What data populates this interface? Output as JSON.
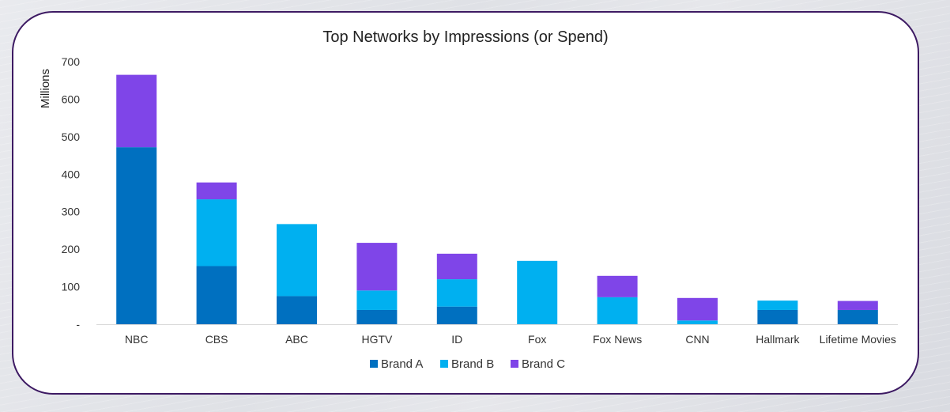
{
  "chart_data": {
    "type": "bar",
    "stacked": true,
    "title": "Top Networks by Impressions (or Spend)",
    "ylabel": "Millions",
    "xlabel": "",
    "ylim": [
      0,
      700
    ],
    "yticks": [
      0,
      100,
      200,
      300,
      400,
      500,
      600,
      700
    ],
    "ytick_labels": [
      "-",
      "100",
      "200",
      "300",
      "400",
      "500",
      "600",
      "700"
    ],
    "grid": false,
    "legend_position": "bottom",
    "categories": [
      "NBC",
      "CBS",
      "ABC",
      "HGTV",
      "ID",
      "Fox",
      "Fox News",
      "CNN",
      "Hallmark",
      "Lifetime Movies"
    ],
    "series": [
      {
        "name": "Brand A",
        "color": "#0070c0",
        "values": [
          472,
          155,
          75,
          38,
          47,
          0,
          0,
          0,
          38,
          38
        ]
      },
      {
        "name": "Brand B",
        "color": "#00b0f0",
        "values": [
          0,
          178,
          192,
          52,
          73,
          169,
          72,
          10,
          25,
          0
        ]
      },
      {
        "name": "Brand C",
        "color": "#7f45e8",
        "values": [
          193,
          45,
          0,
          127,
          68,
          0,
          57,
          60,
          0,
          24
        ]
      }
    ]
  }
}
